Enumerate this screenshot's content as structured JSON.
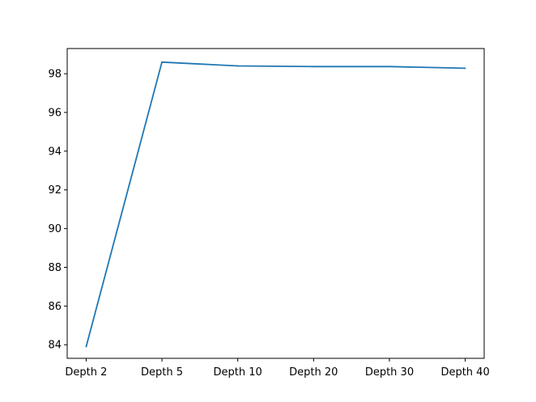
{
  "chart_data": {
    "type": "line",
    "categories": [
      "Depth 2",
      "Depth 5",
      "Depth 10",
      "Depth 20",
      "Depth 30",
      "Depth 40"
    ],
    "series": [
      {
        "values": [
          83.9,
          98.6,
          98.4,
          98.37,
          98.37,
          98.28
        ]
      }
    ],
    "title": "",
    "xlabel": "",
    "ylabel": "",
    "ylim": [
      83.3,
      99.3
    ],
    "yticks": [
      "84",
      "86",
      "88",
      "90",
      "92",
      "94",
      "96",
      "98"
    ],
    "line_color": "#1f77b4",
    "grid": false
  }
}
